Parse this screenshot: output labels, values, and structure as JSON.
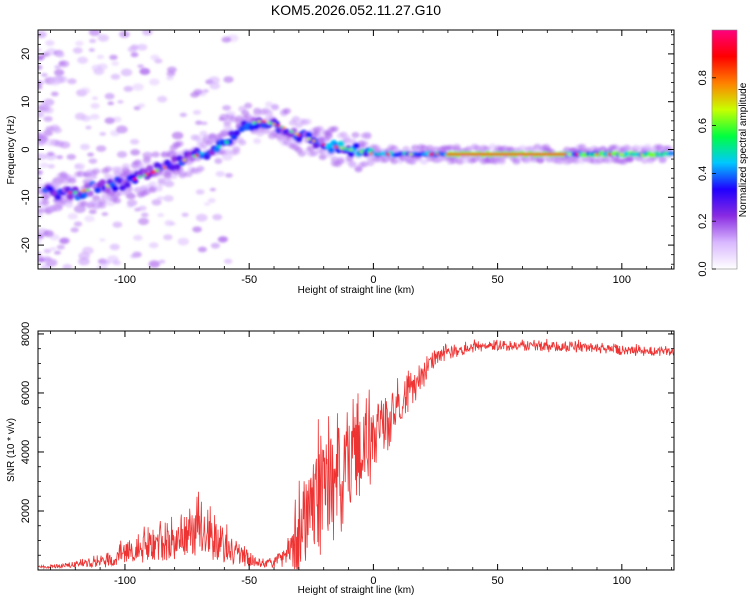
{
  "title": "KOM5.2026.052.11.27.G10",
  "chart_data": [
    {
      "type": "heatmap",
      "name": "spectrogram",
      "xlabel": "Height of straight line (km)",
      "ylabel": "Frequency (Hz)",
      "xlim": [
        -135,
        121
      ],
      "ylim": [
        -25,
        25
      ],
      "xticks": [
        -100,
        -50,
        0,
        50,
        100
      ],
      "xtick_labels": [
        "-100",
        "-50",
        "0",
        "50",
        "100"
      ],
      "yticks": [
        -20,
        -10,
        0,
        10,
        20
      ],
      "ytick_labels": [
        "-20",
        "-10",
        "0",
        "10",
        "20"
      ],
      "ridge": {
        "x": [
          -130,
          -120,
          -110,
          -100,
          -90,
          -80,
          -70,
          -60,
          -52,
          -45,
          -38,
          -30,
          -20,
          -10,
          0,
          10,
          30,
          60,
          90,
          120
        ],
        "y": [
          -9,
          -9,
          -8,
          -7,
          -5,
          -3,
          -1,
          1,
          5,
          6,
          5,
          3,
          1,
          0,
          -1,
          -1,
          -1,
          -1,
          -1,
          -1
        ]
      },
      "colorbar": {
        "label": "Normalized spectral amplitude",
        "range": [
          0.0,
          1.0
        ],
        "ticks": [
          0.0,
          0.2,
          0.4,
          0.6,
          0.8
        ],
        "tick_labels": [
          "0.0",
          "0.2",
          "0.4",
          "0.6",
          "0.8"
        ],
        "colors": [
          "#ffffff",
          "#d9b8ff",
          "#8a2be2",
          "#2000ff",
          "#00c8ff",
          "#00ff40",
          "#c8ff00",
          "#ff8000",
          "#ff0000",
          "#ff007f"
        ]
      }
    },
    {
      "type": "line",
      "name": "snr",
      "xlabel": "Height of straight line (km)",
      "ylabel": "SNR (10 * v/v)",
      "xlim": [
        -135,
        121
      ],
      "ylim": [
        0,
        8100
      ],
      "xticks": [
        -100,
        -50,
        0,
        50,
        100
      ],
      "xtick_labels": [
        "-100",
        "-50",
        "0",
        "50",
        "100"
      ],
      "yticks": [
        2000,
        4000,
        6000,
        8000
      ],
      "ytick_labels": [
        "2000",
        "4000",
        "6000",
        "8000"
      ],
      "color": "#ee3333",
      "x": [
        -135,
        -125,
        -115,
        -105,
        -100,
        -95,
        -90,
        -85,
        -80,
        -75,
        -70,
        -65,
        -60,
        -55,
        -50,
        -45,
        -40,
        -35,
        -30,
        -25,
        -20,
        -15,
        -10,
        -5,
        0,
        5,
        10,
        15,
        20,
        25,
        30,
        40,
        50,
        60,
        70,
        80,
        90,
        100,
        110,
        121
      ],
      "values": [
        100,
        150,
        250,
        400,
        700,
        800,
        900,
        1000,
        1200,
        1400,
        1600,
        1300,
        1000,
        700,
        400,
        250,
        300,
        600,
        1500,
        2500,
        3000,
        3500,
        4000,
        4300,
        4600,
        5200,
        5800,
        6200,
        6700,
        7200,
        7400,
        7600,
        7650,
        7650,
        7600,
        7600,
        7550,
        7500,
        7450,
        7400
      ],
      "noise": [
        50,
        80,
        150,
        300,
        400,
        500,
        600,
        700,
        800,
        900,
        1000,
        900,
        700,
        500,
        300,
        150,
        200,
        400,
        1500,
        2000,
        2200,
        2200,
        2000,
        1800,
        1500,
        1200,
        900,
        700,
        500,
        300,
        250,
        200,
        200,
        200,
        200,
        200,
        200,
        200,
        180,
        150
      ]
    }
  ]
}
